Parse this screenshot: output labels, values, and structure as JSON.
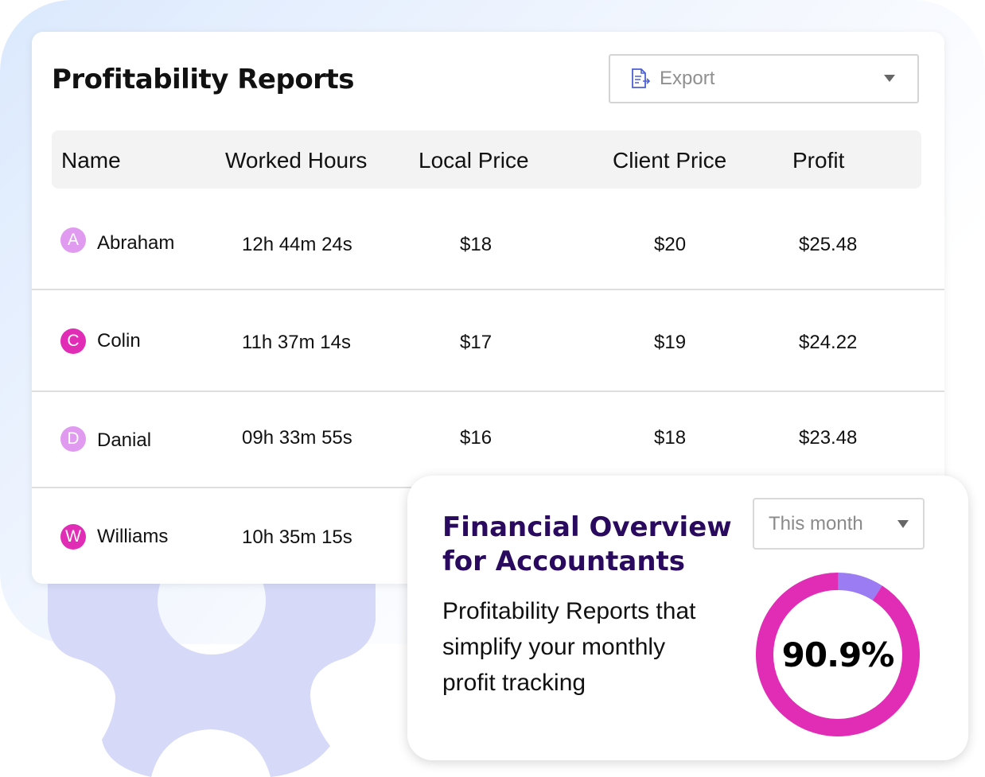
{
  "report": {
    "title": "Profitability Reports",
    "export": {
      "label": "Export",
      "icon": "document-export-icon"
    },
    "columns": [
      "Name",
      "Worked Hours",
      "Local Price",
      "Client Price",
      "Profit"
    ],
    "rows": [
      {
        "initial": "A",
        "avatar_color": "#e09af0",
        "name": "Abraham",
        "hours": "12h 44m 24s",
        "local": "$18",
        "client": "$20",
        "profit": "$25.48"
      },
      {
        "initial": "C",
        "avatar_color": "#e12cb6",
        "name": "Colin",
        "hours": "11h 37m 14s",
        "local": "$17",
        "client": "$19",
        "profit": "$24.22"
      },
      {
        "initial": "D",
        "avatar_color": "#e09af0",
        "name": "Danial",
        "hours": "09h 33m 55s",
        "local": "$16",
        "client": "$18",
        "profit": "$23.48"
      },
      {
        "initial": "W",
        "avatar_color": "#e12cb6",
        "name": "Williams",
        "hours": "10h 35m 15s"
      }
    ]
  },
  "overview": {
    "title_line1": "Financial Overview",
    "title_line2": "for Accountants",
    "desc_line1": "Profitability Reports that",
    "desc_line2": "simplify your monthly",
    "desc_line3": "profit tracking",
    "period": "This month",
    "donut": {
      "label": "90.9%",
      "value_percent": 90.9,
      "primary_color": "#e12cb6",
      "secondary_color": "#9b7cf2"
    }
  },
  "colors": {
    "accent_magenta": "#e12cb6",
    "accent_purple": "#9b7cf2",
    "title_purple": "#2a0a5e",
    "gear": "#d6d9f7"
  }
}
